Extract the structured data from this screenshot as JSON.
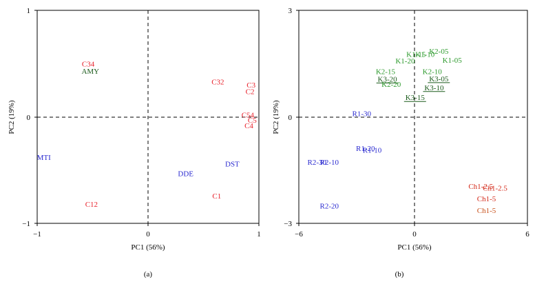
{
  "chart_data": [
    {
      "type": "scatter",
      "panel_label": "(a)",
      "xlabel": "PC1 (56%)",
      "ylabel": "PC2 (19%)",
      "xlim": [
        -1,
        1
      ],
      "ylim": [
        -1,
        1
      ],
      "xticks": [
        "−1",
        "0",
        "1"
      ],
      "yticks": [
        "1",
        "0",
        "−1"
      ],
      "grid": false,
      "reference_lines": "dashed at x=0 and y=0",
      "colors": {
        "red": "#e8202a",
        "green": "#1a5a1a",
        "blue": "#2a2ad0"
      },
      "points": [
        {
          "label": "C34",
          "x": -0.54,
          "y": 0.5,
          "color": "red"
        },
        {
          "label": "AMY",
          "x": -0.52,
          "y": 0.43,
          "color": "green"
        },
        {
          "label": "C32",
          "x": 0.63,
          "y": 0.33,
          "color": "red"
        },
        {
          "label": "C3",
          "x": 0.93,
          "y": 0.3,
          "color": "red"
        },
        {
          "label": "C2",
          "x": 0.92,
          "y": 0.24,
          "color": "red"
        },
        {
          "label": "C54",
          "x": 0.9,
          "y": 0.02,
          "color": "red"
        },
        {
          "label": "C5",
          "x": 0.94,
          "y": -0.03,
          "color": "red"
        },
        {
          "label": "C4",
          "x": 0.91,
          "y": -0.08,
          "color": "red"
        },
        {
          "label": "MTI",
          "x": -0.94,
          "y": -0.38,
          "color": "blue"
        },
        {
          "label": "DST",
          "x": 0.76,
          "y": -0.44,
          "color": "blue"
        },
        {
          "label": "DDE",
          "x": 0.34,
          "y": -0.53,
          "color": "blue"
        },
        {
          "label": "C1",
          "x": 0.62,
          "y": -0.74,
          "color": "red"
        },
        {
          "label": "C12",
          "x": -0.51,
          "y": -0.82,
          "color": "red"
        }
      ]
    },
    {
      "type": "scatter",
      "panel_label": "(b)",
      "xlabel": "PC1 (56%)",
      "ylabel": "PC2 (19%)",
      "xlim": [
        -6,
        6
      ],
      "ylim": [
        -3,
        3
      ],
      "xticks": [
        "−6",
        "0",
        "6"
      ],
      "yticks": [
        "3",
        "0",
        "−3"
      ],
      "grid": false,
      "reference_lines": "dashed at x=0 and y=0",
      "colors": {
        "green": "#2c9a2c",
        "darkgreen": "#1a5a1a",
        "blue": "#2a2ad0",
        "red": "#d42a1a",
        "orange": "#c8501a"
      },
      "points": [
        {
          "label": "K2-05",
          "x": 1.35,
          "y": 1.85,
          "color": "green"
        },
        {
          "label": "K1-15",
          "x": 0.15,
          "y": 1.77,
          "color": "green"
        },
        {
          "label": "K1-10",
          "x": 0.62,
          "y": 1.77,
          "color": "green"
        },
        {
          "label": "K1-20",
          "x": -0.42,
          "y": 1.58,
          "color": "green"
        },
        {
          "label": "K1-05",
          "x": 2.05,
          "y": 1.6,
          "color": "green"
        },
        {
          "label": "K2-15",
          "x": -1.45,
          "y": 1.28,
          "color": "green"
        },
        {
          "label": "K2-10",
          "x": 1.0,
          "y": 1.28,
          "color": "green"
        },
        {
          "label": "K3-20",
          "x": -1.35,
          "y": 1.07,
          "color": "darkgreen"
        },
        {
          "label": "K3-05",
          "x": 1.35,
          "y": 1.08,
          "color": "darkgreen"
        },
        {
          "label": "K2-20",
          "x": -1.15,
          "y": 0.92,
          "color": "green"
        },
        {
          "label": "K3-10",
          "x": 1.1,
          "y": 0.83,
          "color": "darkgreen"
        },
        {
          "label": "K3-15",
          "x": 0.1,
          "y": 0.55,
          "color": "darkgreen"
        },
        {
          "label": "R1-30",
          "x": -2.7,
          "y": 0.1,
          "color": "blue"
        },
        {
          "label": "R1-20",
          "x": -2.5,
          "y": -0.88,
          "color": "blue"
        },
        {
          "label": "R1-10",
          "x": -2.15,
          "y": -0.93,
          "color": "blue"
        },
        {
          "label": "R2-30",
          "x": -5.05,
          "y": -1.27,
          "color": "blue"
        },
        {
          "label": "R2-10",
          "x": -4.4,
          "y": -1.27,
          "color": "blue"
        },
        {
          "label": "R2-20",
          "x": -4.4,
          "y": -2.5,
          "color": "blue"
        },
        {
          "label": "Ch1-2.5",
          "x": 3.55,
          "y": -1.95,
          "color": "red"
        },
        {
          "label": "Ch1-2.5",
          "x": 4.3,
          "y": -2.0,
          "color": "red"
        },
        {
          "label": "Ch1-5",
          "x": 3.85,
          "y": -2.3,
          "color": "red"
        },
        {
          "label": "Ch1-5",
          "x": 3.85,
          "y": -2.63,
          "color": "orange"
        }
      ]
    }
  ]
}
